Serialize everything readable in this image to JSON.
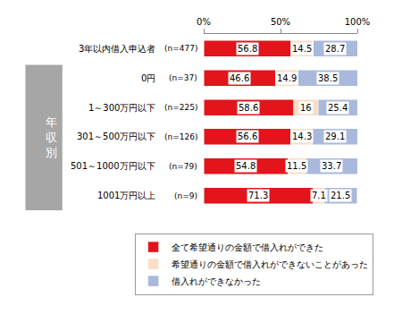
{
  "chart_data": {
    "type": "bar",
    "orientation": "horizontal",
    "stacked": true,
    "data_labels": true,
    "grid": false,
    "legend": "bottom left",
    "categories": [
      "3年以内借入申込者",
      "0円",
      "1～300万円以下",
      "301～500万円以下",
      "501～1000万円以下",
      "1001万円以上"
    ],
    "sample_sizes": [
      "(n=477)",
      "(n=37)",
      "(n=225)",
      "(n=126)",
      "(n=79)",
      "(n=9)"
    ],
    "group_label": "年収別",
    "series": [
      {
        "name": "全て希望通りの金額で借入れができた",
        "color": "#e3141b",
        "values": [
          56.8,
          46.6,
          58.6,
          56.6,
          54.8,
          71.3
        ]
      },
      {
        "name": "希望通りの金額で借入れができないことがあった",
        "color": "#fbdcc4",
        "values": [
          14.5,
          14.9,
          16.0,
          14.3,
          11.5,
          7.1
        ]
      },
      {
        "name": "借入れができなかった",
        "color": "#a9b9dc",
        "values": [
          28.7,
          38.5,
          25.4,
          29.1,
          33.7,
          21.5
        ]
      }
    ],
    "xlim": [
      0,
      100
    ],
    "xticks": [
      {
        "value": 0,
        "label": "0%"
      },
      {
        "value": 50,
        "label": "50%"
      },
      {
        "value": 100,
        "label": "100%"
      }
    ]
  }
}
